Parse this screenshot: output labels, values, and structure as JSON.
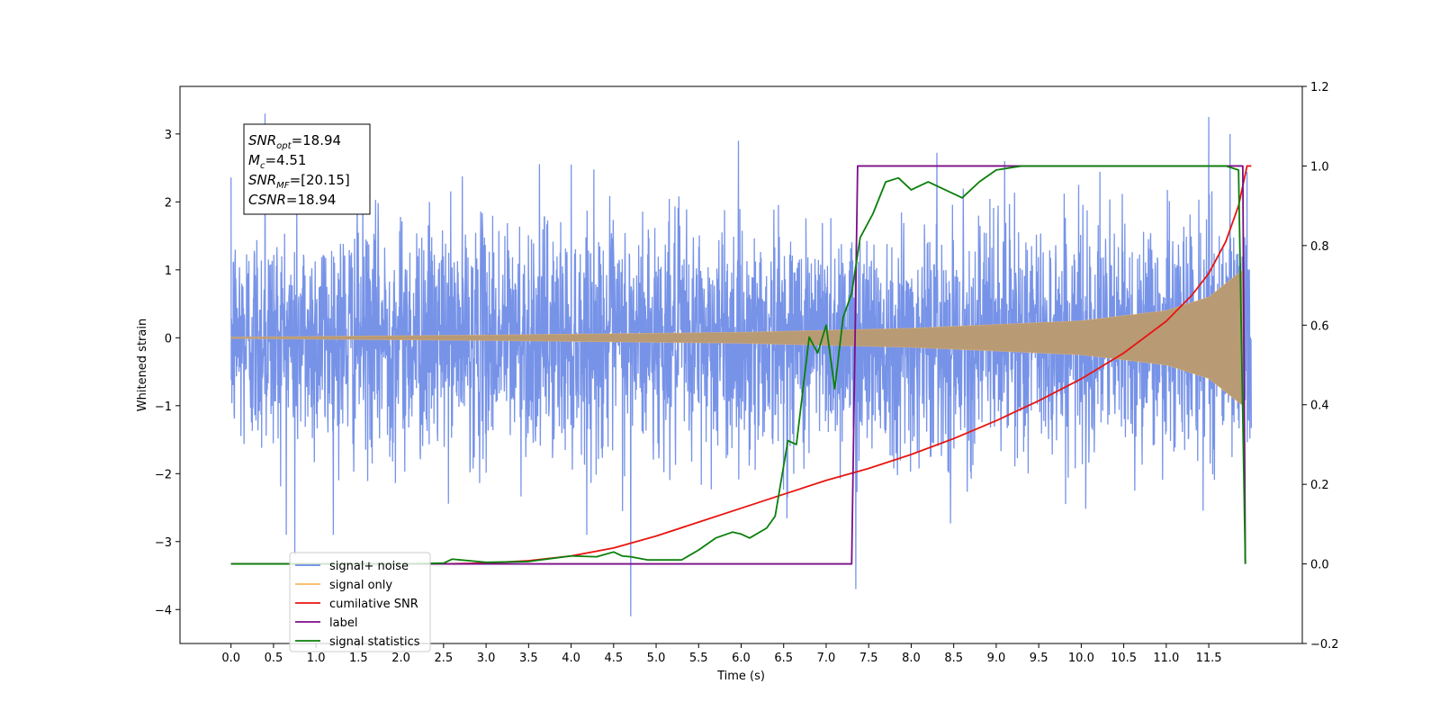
{
  "chart_data": {
    "type": "line",
    "title": "",
    "xlabel": "Time (s)",
    "ylabel": "Whitened strain",
    "xlim": [
      -0.6,
      12.6
    ],
    "ylim": [
      -4.5,
      3.7
    ],
    "y2lim": [
      -0.2,
      1.2
    ],
    "x_ticks": [
      "0.0",
      "0.5",
      "1.0",
      "1.5",
      "2.0",
      "2.5",
      "3.0",
      "3.5",
      "4.0",
      "4.5",
      "5.0",
      "5.5",
      "6.0",
      "6.5",
      "7.0",
      "7.5",
      "8.0",
      "8.5",
      "9.0",
      "9.5",
      "10.0",
      "10.5",
      "11.0",
      "11.5"
    ],
    "y_ticks": [
      -4,
      -3,
      -2,
      -1,
      0,
      1,
      2,
      3
    ],
    "y2_ticks": [
      "−0.2",
      "0.0",
      "0.2",
      "0.4",
      "0.6",
      "0.8",
      "1.0",
      "1.2"
    ],
    "legend_position": "lower-left",
    "annotation": {
      "lines": [
        {
          "base": "SNR",
          "sub": "opt",
          "rest": "=18.94"
        },
        {
          "base": "M",
          "sub": "c",
          "rest": "=4.51"
        },
        {
          "base": "SNR",
          "sub": "MF",
          "rest": "=[20.15]"
        },
        {
          "base": "CSNR",
          "sub": "",
          "rest": "=18.94"
        }
      ]
    },
    "series": [
      {
        "name": "signal+ noise",
        "axis": "left",
        "color": "#6b8ae6",
        "description_kind": "noise",
        "t_range": [
          0.0,
          12.0
        ],
        "std": 0.85,
        "spikes": [
          [
            0.4,
            3.3
          ],
          [
            0.75,
            -3.2
          ],
          [
            4.7,
            -4.1
          ],
          [
            7.35,
            -3.7
          ],
          [
            11.5,
            3.25
          ],
          [
            11.75,
            3.0
          ],
          [
            9.1,
            2.6
          ]
        ]
      },
      {
        "name": "signal only",
        "axis": "left",
        "color": "#f4b860",
        "description_kind": "chirp",
        "t_range": [
          0.0,
          11.9
        ],
        "amplitude_envelope": [
          [
            0.0,
            0.01
          ],
          [
            3.0,
            0.04
          ],
          [
            6.0,
            0.08
          ],
          [
            8.0,
            0.14
          ],
          [
            10.0,
            0.25
          ],
          [
            11.0,
            0.4
          ],
          [
            11.5,
            0.6
          ],
          [
            11.8,
            0.9
          ],
          [
            11.9,
            1.0
          ],
          [
            12.0,
            0.0
          ]
        ]
      },
      {
        "name": "cumilative SNR",
        "axis": "right",
        "color": "#e8150f",
        "x": [
          0.0,
          1.0,
          2.0,
          2.5,
          3.0,
          3.5,
          4.0,
          4.5,
          5.0,
          5.5,
          6.0,
          6.5,
          7.0,
          7.5,
          8.0,
          8.5,
          9.0,
          9.5,
          10.0,
          10.5,
          11.0,
          11.3,
          11.5,
          11.7,
          11.85,
          11.95,
          12.0
        ],
        "y": [
          0.0,
          0.0,
          0.0,
          0.0,
          0.002,
          0.008,
          0.02,
          0.04,
          0.07,
          0.105,
          0.14,
          0.175,
          0.21,
          0.24,
          0.275,
          0.315,
          0.36,
          0.41,
          0.465,
          0.53,
          0.61,
          0.675,
          0.73,
          0.81,
          0.9,
          1.0,
          1.0
        ]
      },
      {
        "name": "label",
        "axis": "right",
        "color": "#7b0e87",
        "x": [
          0.0,
          7.3,
          7.37,
          11.9,
          11.93
        ],
        "y": [
          0.0,
          0.0,
          1.0,
          1.0,
          0.0
        ]
      },
      {
        "name": "signal statistics",
        "axis": "right",
        "color": "#0a7f0a",
        "x": [
          0.0,
          2.0,
          2.5,
          2.6,
          2.8,
          3.0,
          3.5,
          4.0,
          4.3,
          4.5,
          4.6,
          4.7,
          4.9,
          5.3,
          5.5,
          5.7,
          5.9,
          6.0,
          6.1,
          6.3,
          6.4,
          6.55,
          6.65,
          6.8,
          6.9,
          7.0,
          7.1,
          7.2,
          7.3,
          7.4,
          7.55,
          7.7,
          7.85,
          8.0,
          8.2,
          8.4,
          8.6,
          8.8,
          9.0,
          9.3,
          10.0,
          11.0,
          11.7,
          11.85,
          11.93
        ],
        "y": [
          0.0,
          0.0,
          0.002,
          0.012,
          0.008,
          0.004,
          0.006,
          0.02,
          0.018,
          0.03,
          0.02,
          0.018,
          0.01,
          0.01,
          0.035,
          0.065,
          0.08,
          0.075,
          0.065,
          0.09,
          0.12,
          0.31,
          0.3,
          0.57,
          0.53,
          0.6,
          0.44,
          0.62,
          0.68,
          0.82,
          0.88,
          0.96,
          0.97,
          0.94,
          0.96,
          0.94,
          0.92,
          0.96,
          0.99,
          1.0,
          1.0,
          1.0,
          1.0,
          0.99,
          0.0
        ]
      }
    ]
  }
}
